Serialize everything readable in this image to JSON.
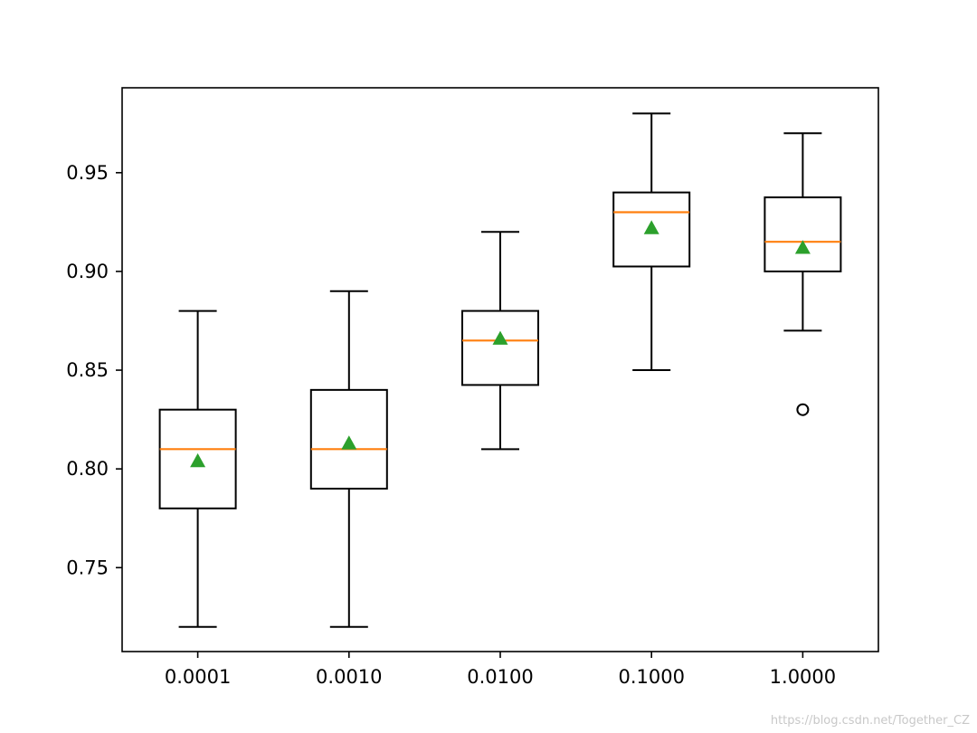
{
  "chart_data": {
    "type": "box",
    "title": "",
    "xlabel": "",
    "ylabel": "",
    "categories": [
      "0.0001",
      "0.0010",
      "0.0100",
      "0.1000",
      "1.0000"
    ],
    "boxes": [
      {
        "label": "0.0001",
        "whisker_low": 0.72,
        "q1": 0.78,
        "median": 0.81,
        "q3": 0.83,
        "whisker_high": 0.88,
        "mean": 0.804,
        "outliers": []
      },
      {
        "label": "0.0010",
        "whisker_low": 0.72,
        "q1": 0.79,
        "median": 0.81,
        "q3": 0.84,
        "whisker_high": 0.89,
        "mean": 0.813,
        "outliers": []
      },
      {
        "label": "0.0100",
        "whisker_low": 0.81,
        "q1": 0.8425,
        "median": 0.865,
        "q3": 0.88,
        "whisker_high": 0.92,
        "mean": 0.866,
        "outliers": []
      },
      {
        "label": "0.1000",
        "whisker_low": 0.85,
        "q1": 0.9025,
        "median": 0.93,
        "q3": 0.94,
        "whisker_high": 0.98,
        "mean": 0.922,
        "outliers": []
      },
      {
        "label": "1.0000",
        "whisker_low": 0.87,
        "q1": 0.9,
        "median": 0.915,
        "q3": 0.9375,
        "whisker_high": 0.97,
        "mean": 0.912,
        "outliers": [
          0.83
        ]
      }
    ],
    "ylim": [
      0.7075,
      0.993
    ],
    "yticks": [
      0.75,
      0.8,
      0.85,
      0.9,
      0.95
    ],
    "ytick_labels": [
      "0.75",
      "0.80",
      "0.85",
      "0.90",
      "0.95"
    ],
    "grid": false,
    "legend": "none",
    "colors": {
      "box": "#000000",
      "median": "#ff7f0e",
      "mean": "#2ca02c",
      "outlier": "#000000"
    }
  },
  "watermark": "https://blog.csdn.net/Together_CZ"
}
